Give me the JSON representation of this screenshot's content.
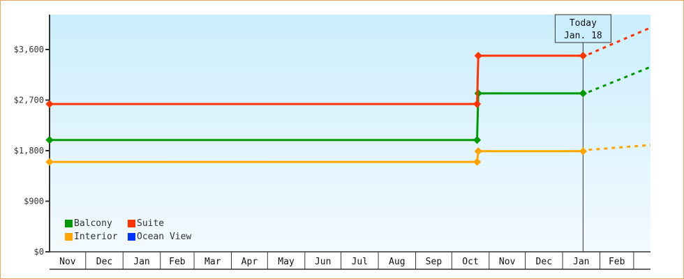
{
  "chart_data": {
    "type": "line",
    "title": "",
    "xlabel": "",
    "ylabel": "",
    "ylim": [
      0,
      4200
    ],
    "yticks": [
      "$0",
      "$900",
      "$1,800",
      "$2,700",
      "$3,600"
    ],
    "ytick_values": [
      0,
      900,
      1800,
      2700,
      3600
    ],
    "month_labels": [
      "Nov",
      "Dec",
      "Jan",
      "Feb",
      "Mar",
      "Apr",
      "May",
      "Jun",
      "Jul",
      "Aug",
      "Sep",
      "Oct",
      "Nov",
      "Dec",
      "Jan",
      "Feb"
    ],
    "x_range": [
      "Nov 1",
      "Mar 15"
    ],
    "today": {
      "label": "Today",
      "date_label": "Jan. 18",
      "date": "Jan 18"
    },
    "legend_position": "bottom-left",
    "background": {
      "top": "#cbeefc",
      "bottom": "#f3faff"
    },
    "series": [
      {
        "name": "Balcony",
        "color": "#009900",
        "x": [
          "Nov 1",
          "Oct 22",
          "Oct 23",
          "Jan 18"
        ],
        "y": [
          1990,
          1990,
          2820,
          2820
        ],
        "projected": {
          "x": [
            "Jan 18",
            "Mar 15"
          ],
          "y": [
            2820,
            3290
          ]
        }
      },
      {
        "name": "Suite",
        "color": "#ff3300",
        "x": [
          "Nov 1",
          "Oct 22",
          "Oct 23",
          "Jan 18"
        ],
        "y": [
          2630,
          2630,
          3490,
          3490
        ],
        "projected": {
          "x": [
            "Jan 18",
            "Mar 15"
          ],
          "y": [
            3490,
            3990
          ]
        }
      },
      {
        "name": "Interior",
        "color": "#ffa500",
        "x": [
          "Nov 1",
          "Oct 22",
          "Oct 23",
          "Jan 18"
        ],
        "y": [
          1600,
          1600,
          1790,
          1790
        ],
        "projected": {
          "x": [
            "Jan 18",
            "Mar 15"
          ],
          "y": [
            1790,
            1900
          ]
        }
      },
      {
        "name": "Ocean View",
        "color": "#0033ff",
        "x": [],
        "y": []
      }
    ]
  }
}
